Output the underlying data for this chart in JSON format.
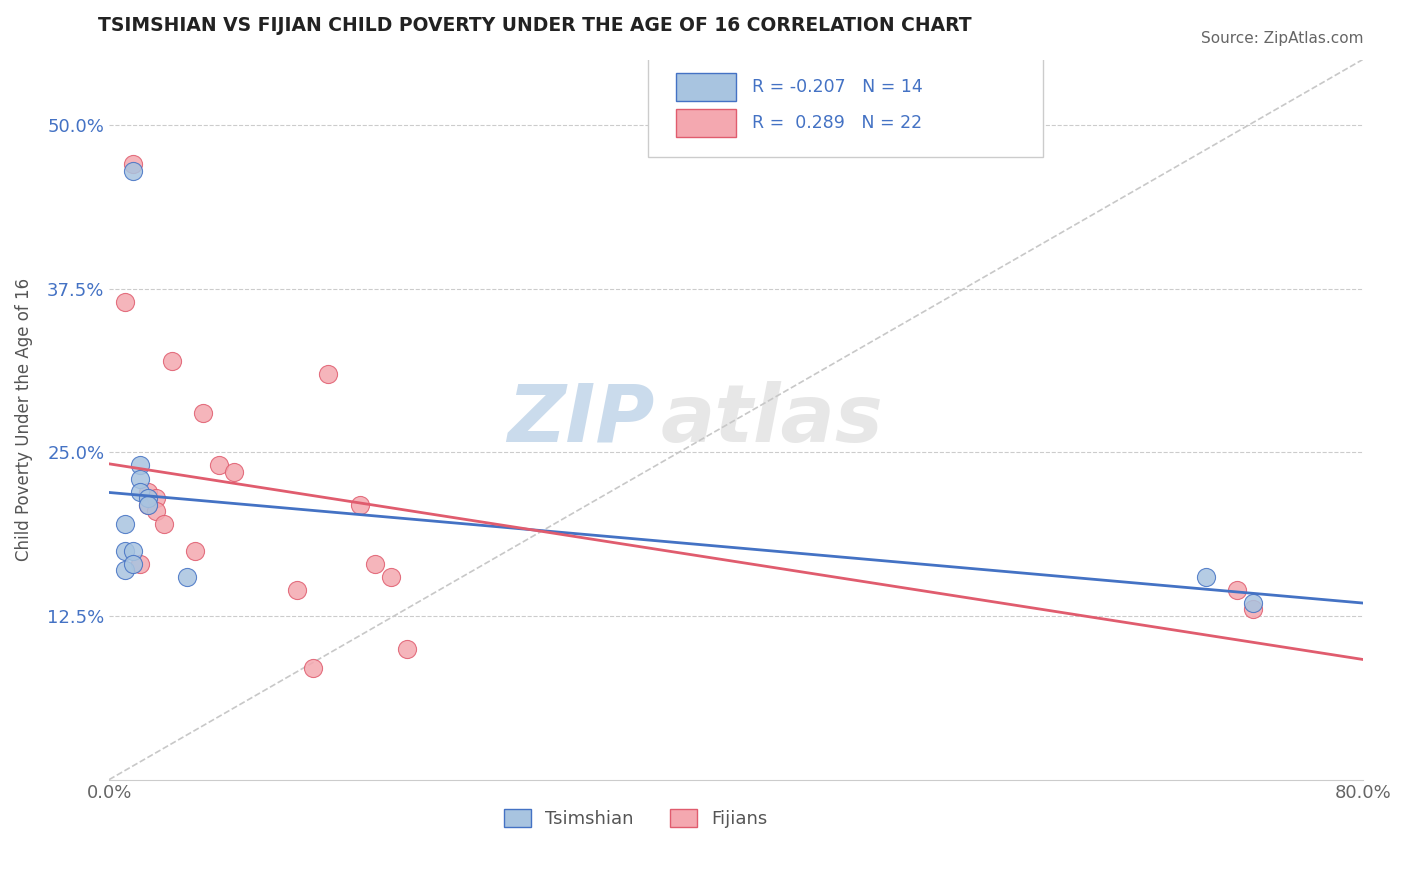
{
  "title": "TSIMSHIAN VS FIJIAN CHILD POVERTY UNDER THE AGE OF 16 CORRELATION CHART",
  "source": "Source: ZipAtlas.com",
  "ylabel": "Child Poverty Under the Age of 16",
  "xlim": [
    0.0,
    0.8
  ],
  "ylim": [
    0.0,
    0.55
  ],
  "xtick_vals": [
    0.0,
    0.8
  ],
  "xtick_labels": [
    "0.0%",
    "80.0%"
  ],
  "ytick_positions": [
    0.125,
    0.25,
    0.375,
    0.5
  ],
  "ytick_labels": [
    "12.5%",
    "25.0%",
    "37.5%",
    "50.0%"
  ],
  "grid_color": "#cccccc",
  "background_color": "#ffffff",
  "tsimshian_color": "#a8c4e0",
  "fijian_color": "#f4a8b0",
  "tsimshian_edge_color": "#4472c4",
  "fijian_edge_color": "#e05c6e",
  "tsimshian_line_color": "#4472c4",
  "fijian_line_color": "#e05c6e",
  "tsimshian_R": -0.207,
  "tsimshian_N": 14,
  "fijian_R": 0.289,
  "fijian_N": 22,
  "legend_label_tsimshian": "Tsimshian",
  "legend_label_fijian": "Fijians",
  "watermark_zip": "ZIP",
  "watermark_atlas": "atlas",
  "tsimshian_x": [
    0.01,
    0.01,
    0.01,
    0.015,
    0.015,
    0.02,
    0.02,
    0.02,
    0.025,
    0.025,
    0.05,
    0.7,
    0.73,
    0.015
  ],
  "tsimshian_y": [
    0.195,
    0.175,
    0.16,
    0.175,
    0.165,
    0.24,
    0.23,
    0.22,
    0.215,
    0.21,
    0.155,
    0.155,
    0.135,
    0.465
  ],
  "fijian_x": [
    0.01,
    0.015,
    0.02,
    0.025,
    0.025,
    0.03,
    0.03,
    0.035,
    0.04,
    0.055,
    0.06,
    0.07,
    0.08,
    0.12,
    0.13,
    0.14,
    0.16,
    0.17,
    0.18,
    0.19,
    0.72,
    0.73
  ],
  "fijian_y": [
    0.365,
    0.47,
    0.165,
    0.22,
    0.21,
    0.215,
    0.205,
    0.195,
    0.32,
    0.175,
    0.28,
    0.24,
    0.235,
    0.145,
    0.085,
    0.31,
    0.21,
    0.165,
    0.155,
    0.1,
    0.145,
    0.13
  ],
  "marker_size": 170
}
